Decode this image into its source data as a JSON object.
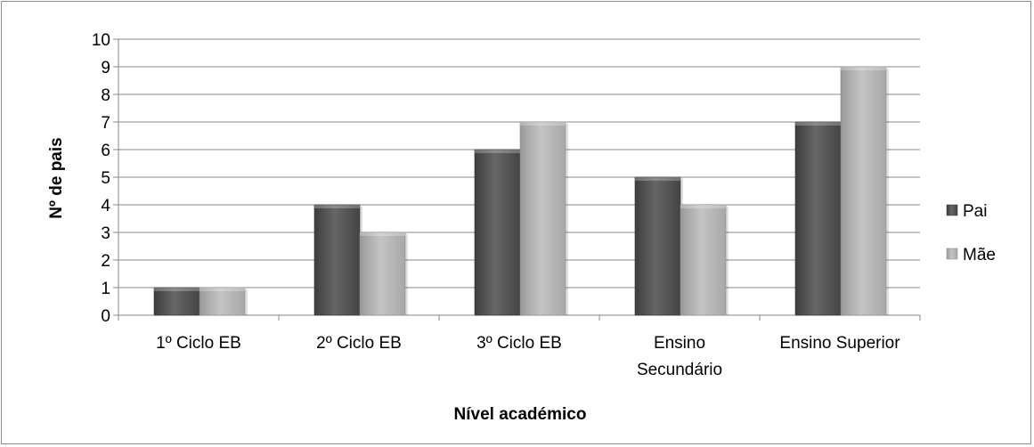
{
  "chart_data": {
    "type": "bar",
    "title": "",
    "xlabel": "Nível académico",
    "ylabel": "Nº de pais",
    "ylim": [
      0,
      10
    ],
    "yticks": [
      "0",
      "1",
      "2",
      "3",
      "4",
      "5",
      "6",
      "7",
      "8",
      "9",
      "10"
    ],
    "categories": [
      [
        "1º Ciclo EB"
      ],
      [
        "2º Ciclo EB"
      ],
      [
        "3º Ciclo EB"
      ],
      [
        "Ensino",
        "Secundário"
      ],
      [
        "Ensino Superior"
      ]
    ],
    "series": [
      {
        "name": "Pai",
        "values": [
          1,
          4,
          6,
          5,
          7
        ],
        "color": "#555555"
      },
      {
        "name": "Mãe",
        "values": [
          1,
          3,
          7,
          4,
          9
        ],
        "color": "#b4b4b4"
      }
    ],
    "grid": true,
    "legend": "right"
  }
}
